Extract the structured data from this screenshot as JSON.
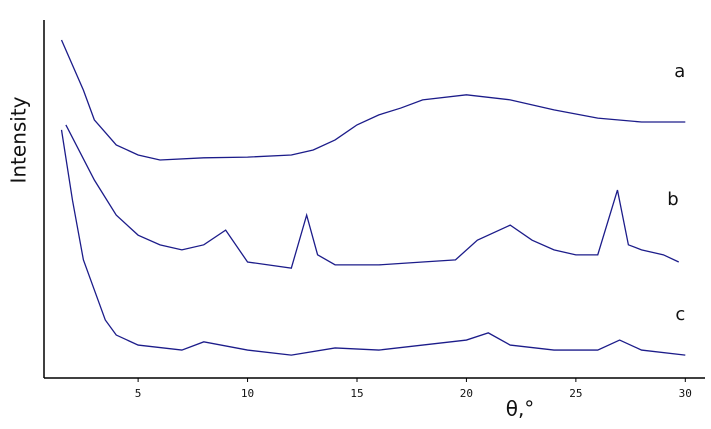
{
  "chart_data": {
    "type": "line",
    "x_label": "θ,°",
    "y_label": "Intensity",
    "xlim": [
      0.7,
      30.9
    ],
    "ylim": [
      0,
      100
    ],
    "xticks": [
      5,
      10,
      15,
      20,
      25,
      30
    ],
    "series": [
      {
        "name": "a",
        "color": "#1c1c8a",
        "x": [
          1.5,
          2.5,
          3,
          4,
          5,
          6,
          8,
          10,
          12,
          13,
          14,
          15,
          16,
          17,
          18,
          20,
          22,
          24,
          26,
          28,
          30
        ],
        "values": [
          94.4,
          80.4,
          72.1,
          65.1,
          62.3,
          60.9,
          61.5,
          61.7,
          62.3,
          63.7,
          66.5,
          70.7,
          73.5,
          75.4,
          77.7,
          79.1,
          77.7,
          74.9,
          72.6,
          71.5,
          71.5
        ]
      },
      {
        "name": "b",
        "color": "#1c1c8a",
        "x": [
          1.7,
          3,
          4,
          5,
          6,
          7,
          8,
          9,
          10,
          12,
          12.7,
          13.2,
          14,
          16,
          18,
          19.5,
          20.5,
          22,
          23,
          24,
          25,
          26,
          26.9,
          27.4,
          28,
          29,
          29.7
        ],
        "values": [
          70.7,
          55.3,
          45.5,
          39.9,
          37.2,
          35.8,
          37.2,
          41.3,
          32.4,
          30.7,
          45.5,
          34.4,
          31.6,
          31.6,
          32.4,
          33,
          38.5,
          42.7,
          38.5,
          35.8,
          34.4,
          34.4,
          52.5,
          37.2,
          35.8,
          34.4,
          32.4
        ]
      },
      {
        "name": "c",
        "color": "#1c1c8a",
        "x": [
          1.5,
          2,
          2.5,
          3,
          3.5,
          4,
          5,
          7,
          8,
          10,
          12,
          14,
          16,
          18,
          20,
          21,
          22,
          24,
          26,
          27,
          28,
          30
        ],
        "values": [
          69.3,
          49.7,
          33,
          24.6,
          16.2,
          12,
          9.2,
          7.8,
          10.1,
          7.8,
          6.4,
          8.4,
          7.8,
          9.2,
          10.6,
          12.6,
          9.2,
          7.8,
          7.8,
          10.6,
          7.8,
          6.4
        ]
      }
    ]
  }
}
